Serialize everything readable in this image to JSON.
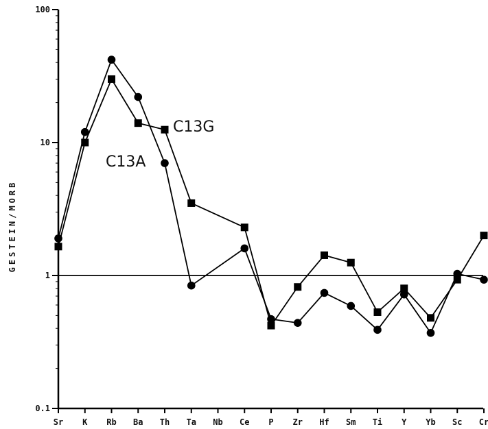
{
  "chart_data": {
    "type": "line",
    "ylabel": "GESTEIN/MORB",
    "xlabel": "",
    "yscale": "log",
    "ylim": [
      0.1,
      100
    ],
    "yticks": [
      {
        "value": 0.1,
        "label": "0.1"
      },
      {
        "value": 1,
        "label": "1"
      },
      {
        "value": 10,
        "label": "10"
      },
      {
        "value": 100,
        "label": "100"
      }
    ],
    "categories": [
      "Sr",
      "K",
      "Rb",
      "Ba",
      "Th",
      "Ta",
      "Nb",
      "Ce",
      "P",
      "Zr",
      "Hf",
      "Sm",
      "Ti",
      "Y",
      "Yb",
      "Sc",
      "Cr"
    ],
    "reference_line": 1,
    "grid": false,
    "series": [
      {
        "name": "C13G",
        "marker": "square",
        "values": [
          1.65,
          10.0,
          30.0,
          14.0,
          12.5,
          3.5,
          null,
          2.3,
          0.42,
          0.82,
          1.42,
          1.25,
          0.53,
          0.8,
          0.48,
          0.93,
          2.0
        ]
      },
      {
        "name": "C13A",
        "marker": "circle",
        "values": [
          1.9,
          12.0,
          42.0,
          22.0,
          7.0,
          0.84,
          null,
          1.6,
          0.47,
          0.44,
          0.74,
          0.59,
          0.39,
          0.72,
          0.37,
          1.03,
          0.93
        ]
      }
    ]
  }
}
